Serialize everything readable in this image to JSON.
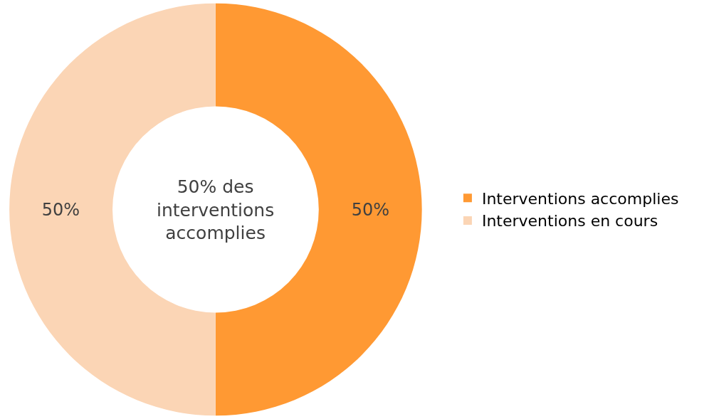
{
  "chart_data": {
    "type": "donut",
    "categories": [
      "Interventions accomplies",
      "Interventions en cours"
    ],
    "values": [
      50,
      50
    ],
    "value_labels": [
      "50%",
      "50%"
    ],
    "colors": [
      "#ff9933",
      "#fbd5b5"
    ],
    "annotations": [
      "50% des\ninterventions\naccomplies"
    ],
    "legend": "right"
  }
}
